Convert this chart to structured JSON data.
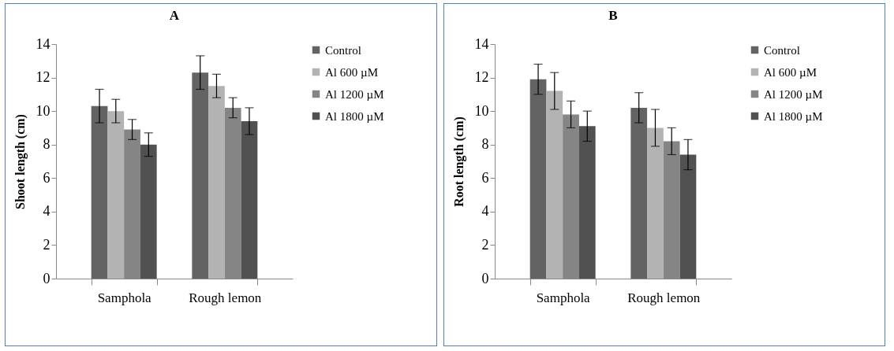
{
  "chart_data": [
    {
      "type": "bar",
      "title": "A",
      "ylabel": "Shoot length (cm)",
      "categories": [
        "Samphola",
        "Rough lemon"
      ],
      "ylim": [
        0,
        14
      ],
      "yticks": [
        0,
        2,
        4,
        6,
        8,
        10,
        12,
        14
      ],
      "grid": false,
      "legend": "right",
      "series": [
        {
          "name": "Control",
          "color": "#636363",
          "values": [
            10.3,
            12.3
          ],
          "errors": [
            1.0,
            1.0
          ]
        },
        {
          "name": "Al 600 µM",
          "color": "#b3b3b3",
          "values": [
            10.0,
            11.5
          ],
          "errors": [
            0.7,
            0.7
          ]
        },
        {
          "name": "Al 1200 µM",
          "color": "#858585",
          "values": [
            8.9,
            10.2
          ],
          "errors": [
            0.6,
            0.6
          ]
        },
        {
          "name": "Al 1800 µM",
          "color": "#515151",
          "values": [
            8.0,
            9.4
          ],
          "errors": [
            0.7,
            0.8
          ]
        }
      ]
    },
    {
      "type": "bar",
      "title": "B",
      "ylabel": "Root length (cm)",
      "categories": [
        "Samphola",
        "Rough lemon"
      ],
      "ylim": [
        0,
        14
      ],
      "yticks": [
        0,
        2,
        4,
        6,
        8,
        10,
        12,
        14
      ],
      "grid": false,
      "legend": "right",
      "series": [
        {
          "name": "Control",
          "color": "#636363",
          "values": [
            11.9,
            10.2
          ],
          "errors": [
            0.9,
            0.9
          ]
        },
        {
          "name": "Al 600 µM",
          "color": "#b3b3b3",
          "values": [
            11.2,
            9.0
          ],
          "errors": [
            1.1,
            1.1
          ]
        },
        {
          "name": "Al 1200 µM",
          "color": "#858585",
          "values": [
            9.8,
            8.2
          ],
          "errors": [
            0.8,
            0.8
          ]
        },
        {
          "name": "Al 1800 µM",
          "color": "#515151",
          "values": [
            9.1,
            7.4
          ],
          "errors": [
            0.9,
            0.9
          ]
        }
      ]
    }
  ]
}
